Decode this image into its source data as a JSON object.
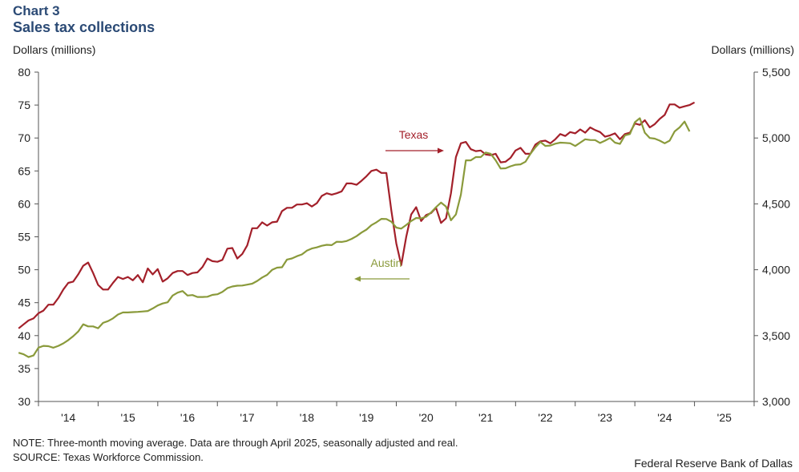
{
  "header": {
    "label": "Chart 3",
    "title": "Sales tax collections",
    "left_unit": "Dollars (millions)",
    "right_unit": "Dollars (millions)"
  },
  "footer": {
    "note": "NOTE: Three-month moving average. Data are through April 2025, seasonally adjusted and real.",
    "source": "SOURCE: Texas Workforce Commission.",
    "credit": "Federal Reserve Bank of Dallas"
  },
  "chart_data": {
    "type": "line",
    "x_ticks": [
      "'14",
      "'15",
      "'16",
      "'17",
      "'18",
      "'19",
      "'20",
      "'21",
      "'22",
      "'23",
      "'24",
      "'25"
    ],
    "y_left": {
      "range": [
        30,
        80
      ],
      "ticks": [
        "30",
        "35",
        "40",
        "45",
        "50",
        "55",
        "60",
        "65",
        "70",
        "75",
        "80"
      ]
    },
    "y_right": {
      "range": [
        3000,
        5500
      ],
      "ticks": [
        "3,000",
        "3,500",
        "4,000",
        "4,500",
        "5,000",
        "5,500"
      ]
    },
    "grid": false,
    "colors": {
      "texas": "#a3202a",
      "austin": "#8a9a3b"
    },
    "series": [
      {
        "name": "Texas",
        "axis": "left",
        "x_start": "2013-09",
        "values": [
          41.1,
          41.7,
          42.3,
          42.6,
          43.4,
          43.8,
          44.7,
          44.7,
          45.7,
          47.0,
          48.0,
          48.2,
          49.3,
          50.6,
          51.1,
          49.5,
          47.7,
          47.0,
          47.0,
          48.0,
          48.9,
          48.6,
          48.9,
          48.4,
          49.2,
          48.1,
          50.2,
          49.3,
          50.1,
          48.2,
          48.7,
          49.5,
          49.8,
          49.8,
          49.2,
          49.5,
          49.6,
          50.4,
          51.7,
          51.3,
          51.2,
          51.5,
          53.2,
          53.3,
          51.7,
          52.4,
          53.7,
          56.3,
          56.3,
          57.2,
          56.7,
          57.2,
          57.3,
          58.9,
          59.4,
          59.4,
          59.9,
          59.9,
          60.1,
          59.6,
          60.1,
          61.2,
          61.6,
          61.4,
          61.6,
          61.9,
          63.1,
          63.1,
          62.9,
          63.5,
          64.2,
          65.0,
          65.2,
          64.7,
          64.7,
          59.0,
          54.0,
          50.7,
          55.0,
          58.4,
          59.5,
          57.4,
          58.3,
          58.6,
          59.4,
          57.1,
          57.8,
          61.6,
          67.1,
          69.2,
          69.4,
          68.3,
          68.0,
          68.1,
          67.5,
          67.4,
          67.6,
          66.3,
          66.4,
          67.0,
          68.1,
          68.5,
          67.6,
          67.6,
          69.0,
          69.5,
          69.6,
          69.2,
          69.8,
          70.6,
          70.3,
          70.9,
          70.7,
          71.3,
          70.8,
          71.6,
          71.2,
          70.9,
          70.2,
          70.4,
          70.7,
          69.8,
          70.6,
          70.8,
          72.2,
          72.0,
          72.7,
          71.6,
          72.1,
          72.9,
          73.5,
          75.1,
          75.1,
          74.6,
          74.8,
          75.0,
          75.4
        ]
      },
      {
        "name": "Austin",
        "axis": "right",
        "x_start": "2013-09",
        "values": [
          3370,
          3358,
          3337,
          3349,
          3409,
          3422,
          3420,
          3408,
          3422,
          3441,
          3466,
          3496,
          3531,
          3586,
          3570,
          3570,
          3556,
          3597,
          3610,
          3631,
          3660,
          3676,
          3676,
          3678,
          3680,
          3683,
          3687,
          3706,
          3729,
          3744,
          3753,
          3804,
          3826,
          3838,
          3804,
          3808,
          3793,
          3793,
          3795,
          3809,
          3814,
          3832,
          3860,
          3873,
          3879,
          3880,
          3887,
          3894,
          3915,
          3941,
          3961,
          3999,
          4016,
          4019,
          4077,
          4086,
          4103,
          4116,
          4145,
          4161,
          4170,
          4182,
          4189,
          4187,
          4212,
          4211,
          4218,
          4234,
          4255,
          4282,
          4305,
          4339,
          4360,
          4386,
          4385,
          4365,
          4320,
          4312,
          4340,
          4370,
          4393,
          4390,
          4402,
          4435,
          4475,
          4510,
          4480,
          4375,
          4420,
          4570,
          4830,
          4830,
          4855,
          4855,
          4890,
          4880,
          4830,
          4768,
          4770,
          4785,
          4797,
          4800,
          4820,
          4880,
          4930,
          4970,
          4940,
          4943,
          4957,
          4965,
          4963,
          4960,
          4939,
          4965,
          4990,
          4985,
          4984,
          4962,
          4980,
          5000,
          4965,
          4955,
          5020,
          5030,
          5120,
          5150,
          5040,
          5000,
          4995,
          4980,
          4960,
          4980,
          5050,
          5080,
          5125,
          5050
        ]
      }
    ],
    "annotations": [
      {
        "text": "Texas",
        "series": "Texas",
        "arrow": "right"
      },
      {
        "text": "Austin",
        "series": "Austin",
        "arrow": "left"
      }
    ]
  }
}
